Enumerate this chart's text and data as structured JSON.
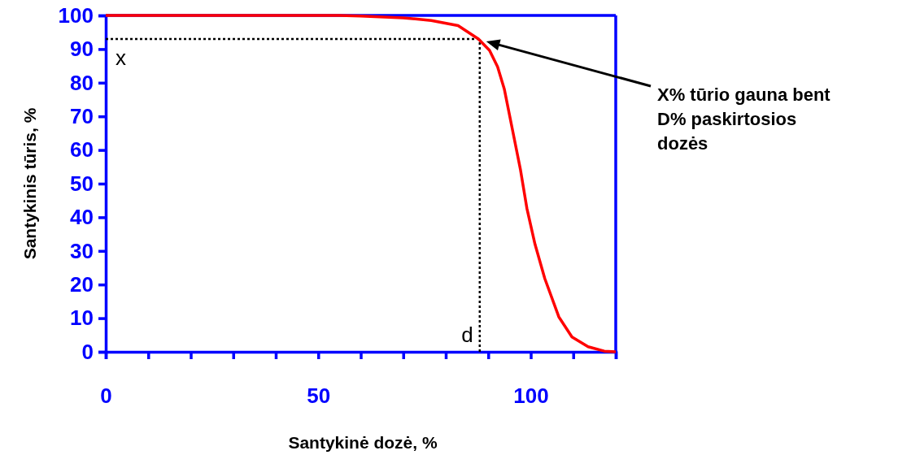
{
  "chart_data": {
    "type": "line",
    "xlabel": "Santykinė dozė, %",
    "ylabel": "Santykinis tūris, %",
    "xlim": [
      0,
      120
    ],
    "ylim": [
      0,
      100
    ],
    "xticks": [
      0,
      {
        "value": 10,
        "label": null
      },
      {
        "value": 20,
        "label": null
      },
      {
        "value": 30,
        "label": null
      },
      {
        "value": 40,
        "label": null
      },
      50,
      {
        "value": 60,
        "label": null
      },
      {
        "value": 70,
        "label": null
      },
      {
        "value": 80,
        "label": null
      },
      {
        "value": 90,
        "label": null
      },
      100,
      {
        "value": 110,
        "label": null
      },
      {
        "value": 120,
        "label": null
      }
    ],
    "yticks": [
      0,
      10,
      20,
      30,
      40,
      50,
      60,
      70,
      80,
      90,
      100
    ],
    "grid": false,
    "marker": "none",
    "line_style": "solid",
    "series": [
      {
        "color": "#ff0000",
        "x": [
          0,
          20,
          40,
          55,
          60,
          70,
          76.6,
          82.9,
          87.7,
          90.3,
          92.2,
          93.8,
          95.7,
          97.6,
          99.1,
          101,
          103.3,
          106.6,
          109.7,
          113.5,
          117.3,
          120
        ],
        "values": [
          100,
          100,
          100,
          100,
          99.8,
          99.3,
          98.5,
          97,
          93,
          89.6,
          84.7,
          78,
          66,
          54,
          42.6,
          32,
          21.8,
          10.4,
          4.4,
          1.5,
          0.2,
          0
        ]
      }
    ],
    "ref_lines": [
      {
        "axis": "x",
        "value": 88,
        "label": "d",
        "color": "#000000",
        "line_style": "dotted"
      },
      {
        "axis": "y",
        "value": 93,
        "label": "x",
        "color": "#000000",
        "line_style": "dotted"
      }
    ],
    "annotations": [
      "X% tūrio gauna bent D% paskirtosios dozės"
    ]
  }
}
